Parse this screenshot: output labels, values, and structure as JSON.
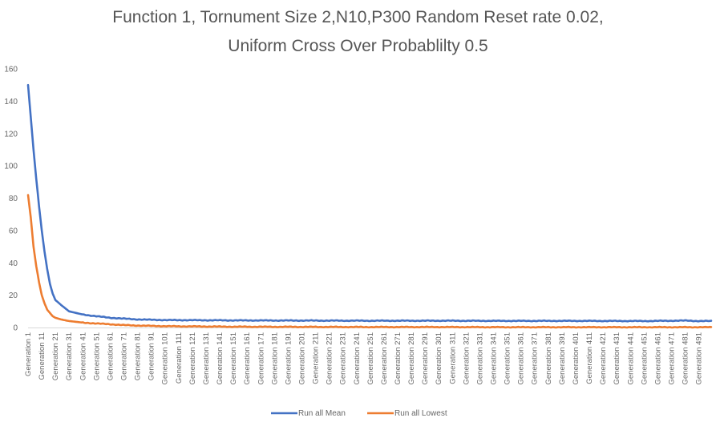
{
  "chart_data": {
    "type": "line",
    "title_line1": "Function 1, Tornument Size 2,N10,P300 Random Reset rate 0.02,",
    "title_line2": "Uniform Cross Over Probablilty 0.5",
    "xlabel": "",
    "ylabel": "",
    "ylim": [
      0,
      160
    ],
    "yticks": [
      0,
      20,
      40,
      60,
      80,
      100,
      120,
      140,
      160
    ],
    "x_range": [
      1,
      500
    ],
    "x_tick_labels": [
      "Generation 1",
      "Generation 11",
      "Generation 21",
      "Generation 31",
      "Generation 41",
      "Generation 51",
      "Generation 61",
      "Generation 71",
      "Generation 81",
      "Generation 91",
      "Generation 101",
      "Generation 111",
      "Generation 121",
      "Generation 131",
      "Generation 141",
      "Generation 151",
      "Generation 161",
      "Generation 171",
      "Generation 181",
      "Generation 191",
      "Generation 201",
      "Generation 211",
      "Generation 221",
      "Generation 231",
      "Generation 241",
      "Generation 251",
      "Generation 261",
      "Generation 271",
      "Generation 281",
      "Generation 291",
      "Generation 301",
      "Generation 311",
      "Generation 321",
      "Generation 331",
      "Generation 341",
      "Generation 351",
      "Generation 361",
      "Generation 371",
      "Generation 381",
      "Generation 391",
      "Generation 401",
      "Generation 411",
      "Generation 421",
      "Generation 431",
      "Generation 441",
      "Generation 451",
      "Generation 461",
      "Generation 471",
      "Generation 481",
      "Generation 491"
    ],
    "grid": false,
    "legend_position": "bottom",
    "series": [
      {
        "name": "Run all Mean",
        "color": "#4472C4",
        "x": [
          1,
          3,
          5,
          7,
          9,
          11,
          13,
          15,
          17,
          19,
          21,
          25,
          31,
          41,
          51,
          61,
          71,
          81,
          91,
          101,
          151,
          201,
          251,
          301,
          351,
          401,
          451,
          481,
          491,
          500
        ],
        "values": [
          150,
          130,
          110,
          92,
          75,
          60,
          47,
          36,
          27,
          21,
          17,
          14,
          10,
          8,
          7,
          6,
          5.5,
          5,
          4.8,
          4.6,
          4.4,
          4.3,
          4.2,
          4.2,
          4.1,
          4.1,
          4.0,
          4.3,
          4.0,
          4.0
        ]
      },
      {
        "name": "Run all Lowest",
        "color": "#ED7D31",
        "x": [
          1,
          3,
          5,
          7,
          9,
          11,
          13,
          15,
          17,
          19,
          21,
          25,
          31,
          41,
          51,
          61,
          71,
          81,
          91,
          101,
          151,
          201,
          251,
          301,
          351,
          401,
          451,
          500
        ],
        "values": [
          82,
          68,
          50,
          38,
          28,
          20,
          15,
          11,
          9,
          7,
          6,
          5,
          4,
          3,
          2.5,
          2,
          1.5,
          1.2,
          1.0,
          0.8,
          0.5,
          0.4,
          0.3,
          0.3,
          0.2,
          0.2,
          0.2,
          0.2
        ]
      }
    ]
  }
}
